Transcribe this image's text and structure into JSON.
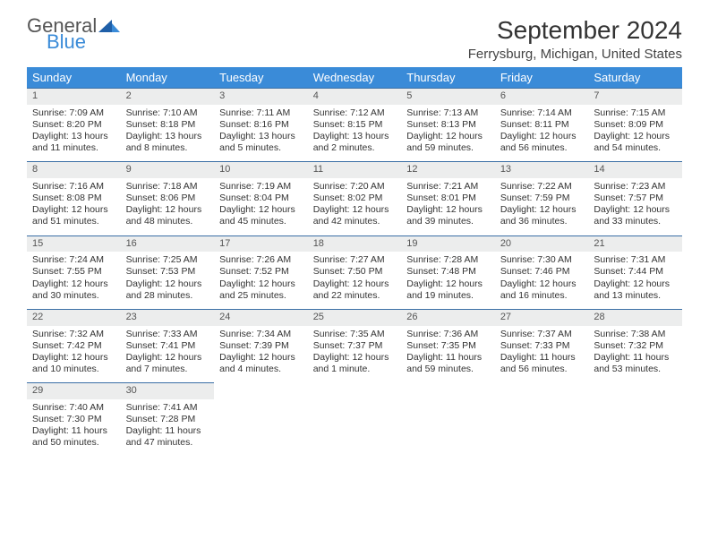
{
  "logo": {
    "text1": "General",
    "text2": "Blue"
  },
  "title": "September 2024",
  "subtitle": "Ferrysburg, Michigan, United States",
  "weekdays": [
    "Sunday",
    "Monday",
    "Tuesday",
    "Wednesday",
    "Thursday",
    "Friday",
    "Saturday"
  ],
  "header_bg": "#3a8bd8",
  "daynum_bg": "#eceded",
  "rule_color": "#3a6ea5",
  "days": [
    {
      "n": 1,
      "sr": "7:09 AM",
      "ss": "8:20 PM",
      "dl": "13 hours and 11 minutes."
    },
    {
      "n": 2,
      "sr": "7:10 AM",
      "ss": "8:18 PM",
      "dl": "13 hours and 8 minutes."
    },
    {
      "n": 3,
      "sr": "7:11 AM",
      "ss": "8:16 PM",
      "dl": "13 hours and 5 minutes."
    },
    {
      "n": 4,
      "sr": "7:12 AM",
      "ss": "8:15 PM",
      "dl": "13 hours and 2 minutes."
    },
    {
      "n": 5,
      "sr": "7:13 AM",
      "ss": "8:13 PM",
      "dl": "12 hours and 59 minutes."
    },
    {
      "n": 6,
      "sr": "7:14 AM",
      "ss": "8:11 PM",
      "dl": "12 hours and 56 minutes."
    },
    {
      "n": 7,
      "sr": "7:15 AM",
      "ss": "8:09 PM",
      "dl": "12 hours and 54 minutes."
    },
    {
      "n": 8,
      "sr": "7:16 AM",
      "ss": "8:08 PM",
      "dl": "12 hours and 51 minutes."
    },
    {
      "n": 9,
      "sr": "7:18 AM",
      "ss": "8:06 PM",
      "dl": "12 hours and 48 minutes."
    },
    {
      "n": 10,
      "sr": "7:19 AM",
      "ss": "8:04 PM",
      "dl": "12 hours and 45 minutes."
    },
    {
      "n": 11,
      "sr": "7:20 AM",
      "ss": "8:02 PM",
      "dl": "12 hours and 42 minutes."
    },
    {
      "n": 12,
      "sr": "7:21 AM",
      "ss": "8:01 PM",
      "dl": "12 hours and 39 minutes."
    },
    {
      "n": 13,
      "sr": "7:22 AM",
      "ss": "7:59 PM",
      "dl": "12 hours and 36 minutes."
    },
    {
      "n": 14,
      "sr": "7:23 AM",
      "ss": "7:57 PM",
      "dl": "12 hours and 33 minutes."
    },
    {
      "n": 15,
      "sr": "7:24 AM",
      "ss": "7:55 PM",
      "dl": "12 hours and 30 minutes."
    },
    {
      "n": 16,
      "sr": "7:25 AM",
      "ss": "7:53 PM",
      "dl": "12 hours and 28 minutes."
    },
    {
      "n": 17,
      "sr": "7:26 AM",
      "ss": "7:52 PM",
      "dl": "12 hours and 25 minutes."
    },
    {
      "n": 18,
      "sr": "7:27 AM",
      "ss": "7:50 PM",
      "dl": "12 hours and 22 minutes."
    },
    {
      "n": 19,
      "sr": "7:28 AM",
      "ss": "7:48 PM",
      "dl": "12 hours and 19 minutes."
    },
    {
      "n": 20,
      "sr": "7:30 AM",
      "ss": "7:46 PM",
      "dl": "12 hours and 16 minutes."
    },
    {
      "n": 21,
      "sr": "7:31 AM",
      "ss": "7:44 PM",
      "dl": "12 hours and 13 minutes."
    },
    {
      "n": 22,
      "sr": "7:32 AM",
      "ss": "7:42 PM",
      "dl": "12 hours and 10 minutes."
    },
    {
      "n": 23,
      "sr": "7:33 AM",
      "ss": "7:41 PM",
      "dl": "12 hours and 7 minutes."
    },
    {
      "n": 24,
      "sr": "7:34 AM",
      "ss": "7:39 PM",
      "dl": "12 hours and 4 minutes."
    },
    {
      "n": 25,
      "sr": "7:35 AM",
      "ss": "7:37 PM",
      "dl": "12 hours and 1 minute."
    },
    {
      "n": 26,
      "sr": "7:36 AM",
      "ss": "7:35 PM",
      "dl": "11 hours and 59 minutes."
    },
    {
      "n": 27,
      "sr": "7:37 AM",
      "ss": "7:33 PM",
      "dl": "11 hours and 56 minutes."
    },
    {
      "n": 28,
      "sr": "7:38 AM",
      "ss": "7:32 PM",
      "dl": "11 hours and 53 minutes."
    },
    {
      "n": 29,
      "sr": "7:40 AM",
      "ss": "7:30 PM",
      "dl": "11 hours and 50 minutes."
    },
    {
      "n": 30,
      "sr": "7:41 AM",
      "ss": "7:28 PM",
      "dl": "11 hours and 47 minutes."
    }
  ],
  "labels": {
    "sunrise": "Sunrise:",
    "sunset": "Sunset:",
    "daylight": "Daylight:"
  },
  "start_weekday": 0,
  "font_sizes": {
    "title": 28,
    "subtitle": 15,
    "th": 13,
    "daynum": 11,
    "body": 10.5
  }
}
